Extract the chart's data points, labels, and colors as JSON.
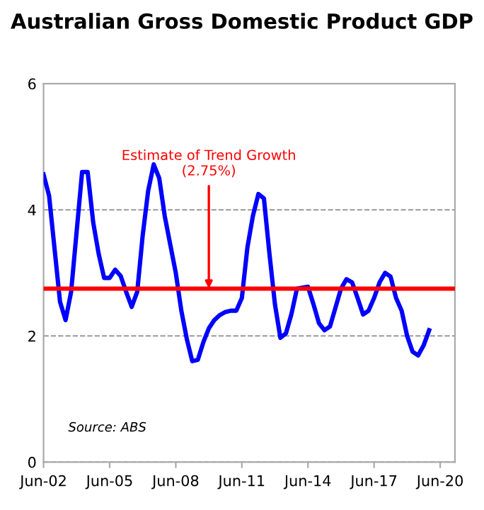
{
  "chart_data": {
    "type": "line",
    "title": "Australian Gross Domestic Product GDP",
    "x": [
      "2002-06",
      "2002-09",
      "2003-03",
      "2003-06",
      "2003-09",
      "2004-03",
      "2004-06",
      "2004-09",
      "2004-12",
      "2005-03",
      "2005-06",
      "2005-09",
      "2005-12",
      "2006-03",
      "2006-06",
      "2006-09",
      "2006-12",
      "2007-03",
      "2007-06",
      "2007-09",
      "2007-12",
      "2008-03",
      "2008-06",
      "2008-09",
      "2008-12",
      "2009-03",
      "2009-06",
      "2009-09",
      "2009-12",
      "2010-03",
      "2010-06",
      "2010-09",
      "2010-12",
      "2011-03",
      "2011-06",
      "2011-09",
      "2011-12",
      "2012-03",
      "2012-06",
      "2012-09",
      "2012-12",
      "2013-03",
      "2013-06",
      "2013-09",
      "2013-12",
      "2014-06",
      "2014-09",
      "2014-12",
      "2015-03",
      "2015-06",
      "2015-09",
      "2015-12",
      "2016-03",
      "2016-06",
      "2016-09",
      "2016-12",
      "2017-03",
      "2017-06",
      "2017-09",
      "2017-12",
      "2018-03",
      "2018-06",
      "2018-09",
      "2018-12",
      "2019-03",
      "2019-06",
      "2019-09",
      "2019-12"
    ],
    "series": [
      {
        "color": "#0000ff",
        "values": [
          4.56,
          4.22,
          2.54,
          2.25,
          2.7,
          4.6,
          4.6,
          3.8,
          3.3,
          2.92,
          2.92,
          3.05,
          2.95,
          2.7,
          2.46,
          2.7,
          3.6,
          4.3,
          4.72,
          4.5,
          3.9,
          3.45,
          3.0,
          2.4,
          1.95,
          1.6,
          1.62,
          1.9,
          2.12,
          2.25,
          2.33,
          2.38,
          2.4,
          2.4,
          2.6,
          3.4,
          3.9,
          4.25,
          4.18,
          3.3,
          2.5,
          1.97,
          2.04,
          2.35,
          2.75,
          2.78,
          2.5,
          2.2,
          2.09,
          2.15,
          2.45,
          2.75,
          2.9,
          2.85,
          2.6,
          2.34,
          2.4,
          2.6,
          2.85,
          3.0,
          2.94,
          2.6,
          2.4,
          2.0,
          1.75,
          1.69,
          1.85,
          2.09
        ]
      }
    ],
    "xlim": [
      "2002-06",
      "2021-02"
    ],
    "xticks": [
      {
        "value": "2002-06",
        "label": "Jun-02"
      },
      {
        "value": "2005-06",
        "label": "Jun-05"
      },
      {
        "value": "2008-06",
        "label": "Jun-08"
      },
      {
        "value": "2011-06",
        "label": "Jun-11"
      },
      {
        "value": "2014-06",
        "label": "Jun-14"
      },
      {
        "value": "2017-06",
        "label": "Jun-17"
      },
      {
        "value": "2020-06",
        "label": "Jun-20"
      }
    ],
    "ylim": [
      0,
      6
    ],
    "yticks": [
      0,
      2,
      4,
      6
    ],
    "grid": "y",
    "line_style": "solid",
    "marker": "none",
    "ref_lines": [
      {
        "axis": "y",
        "value": 2.75,
        "color": "#ff0000",
        "line_style": "solid"
      }
    ],
    "annotations": [
      {
        "text": "Estimate of Trend Growth (2.75%)",
        "x": "2009-12",
        "y": 2.75
      },
      "Source: ABS"
    ]
  }
}
